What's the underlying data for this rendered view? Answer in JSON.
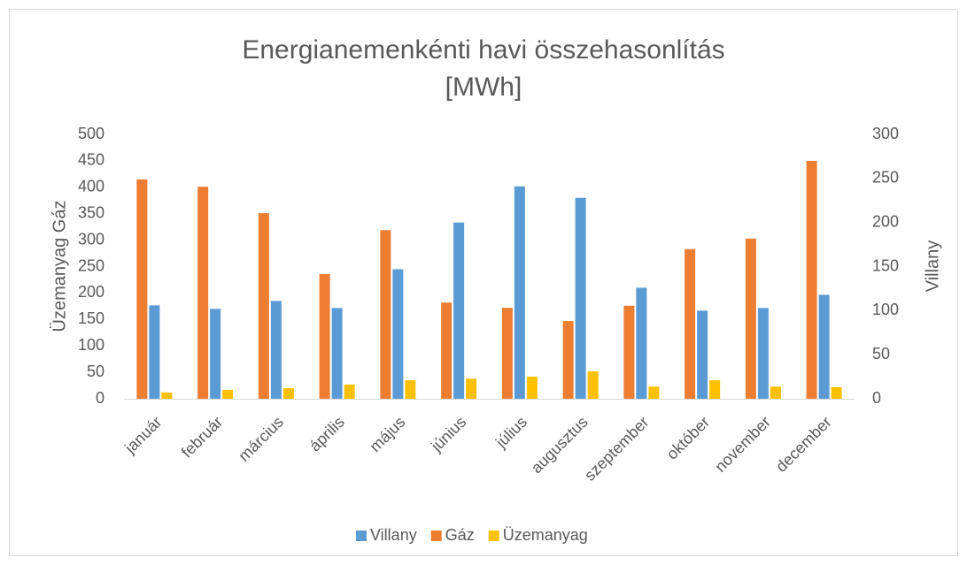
{
  "chart_data": {
    "type": "bar",
    "title": "Energianemenkénti havi összehasonlítás [MWh]",
    "ylabel": "Üzemanyag Gáz",
    "y2label": "Villany",
    "categories": [
      "január",
      "február",
      "március",
      "április",
      "május",
      "június",
      "július",
      "augusztus",
      "szeptember",
      "október",
      "november",
      "december"
    ],
    "series": [
      {
        "name": "Villany",
        "color": "#5b9bd5",
        "axis": "y2",
        "values": [
          106,
          102,
          111,
          103,
          147,
          200,
          241,
          228,
          126,
          100,
          103,
          118
        ]
      },
      {
        "name": "Gáz",
        "color": "#ed7d31",
        "values": [
          415,
          401,
          351,
          236,
          319,
          182,
          172,
          147,
          176,
          283,
          303,
          450
        ]
      },
      {
        "name": "Üzemanyag",
        "color": "#ffc000",
        "values": [
          12,
          17,
          20,
          27,
          35,
          38,
          42,
          52,
          23,
          35,
          23,
          22
        ]
      }
    ],
    "ylim": [
      0,
      500
    ],
    "yticks": [
      0,
      50,
      100,
      150,
      200,
      250,
      300,
      350,
      400,
      450,
      500
    ],
    "y2lim": [
      0,
      300
    ],
    "y2ticks": [
      0,
      50,
      100,
      150,
      200,
      250,
      300
    ],
    "grid": false,
    "legend": "bottom"
  }
}
